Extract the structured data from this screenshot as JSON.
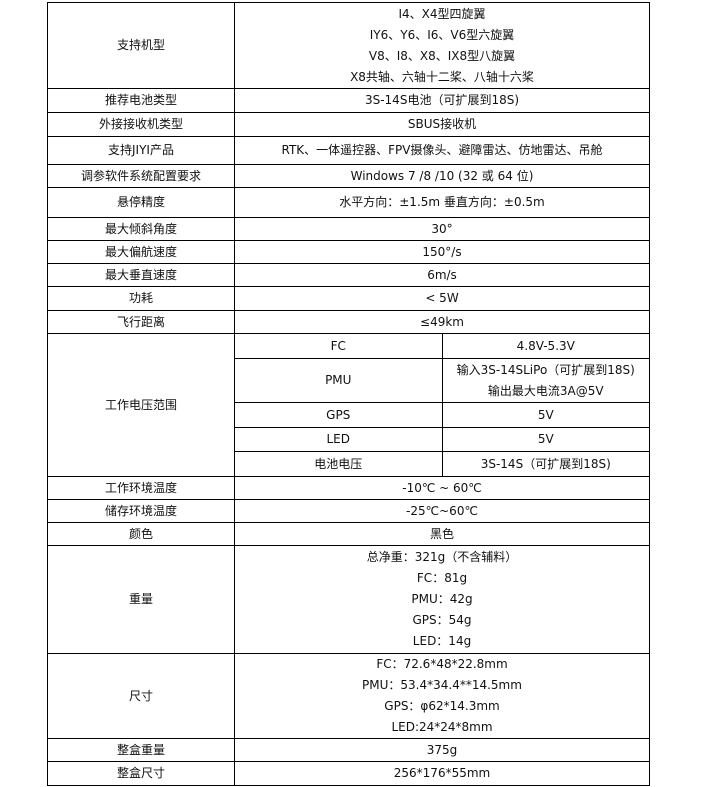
{
  "rows": [
    {
      "label": "支持机型",
      "lines": [
        "I4、X4型四旋翼",
        "IY6、Y6、I6、V6型六旋翼",
        "V8、I8、X8、IX8型八旋翼",
        "X8共轴、六轴十二桨、八轴十六桨"
      ]
    },
    {
      "label": "推荐电池类型",
      "lines": [
        "3S-14S电池（可扩展到18S)"
      ]
    },
    {
      "label": "外接接收机类型",
      "lines": [
        "SBUS接收机"
      ]
    },
    {
      "label": "支持JIYI产品",
      "lines": [
        "RTK、一体遥控器、FPV摄像头、避障雷达、仿地雷达、吊舱"
      ]
    },
    {
      "label": "调参软件系统配置要求",
      "lines": [
        "Windows 7 /8 /10 (32  或  64  位)"
      ]
    },
    {
      "label": "悬停精度",
      "lines": [
        "水平方向：±1.5m      垂直方向：±0.5m"
      ]
    },
    {
      "label": "最大倾斜角度",
      "lines": [
        "30°"
      ]
    },
    {
      "label": "最大偏航速度",
      "lines": [
        "150°/s"
      ]
    },
    {
      "label": "最大垂直速度",
      "lines": [
        "6m/s"
      ]
    },
    {
      "label": "功耗",
      "lines": [
        "< 5W"
      ]
    },
    {
      "label": "飞行距离",
      "lines": [
        "≤49km"
      ]
    },
    {
      "label": "工作电压范围",
      "sub": [
        {
          "label": "FC",
          "lines": [
            "4.8V-5.3V"
          ]
        },
        {
          "label": "PMU",
          "lines": [
            "输入3S-14SLiPo（可扩展到18S)",
            "输出最大电流3A@5V"
          ]
        },
        {
          "label": "GPS",
          "lines": [
            "5V"
          ]
        },
        {
          "label": "LED",
          "lines": [
            "5V"
          ]
        },
        {
          "label": "电池电压",
          "lines": [
            "3S-14S（可扩展到18S)"
          ]
        }
      ]
    },
    {
      "label": "工作环境温度",
      "lines": [
        "-10℃ ~ 60℃"
      ]
    },
    {
      "label": "储存环境温度",
      "lines": [
        "-25℃~60℃"
      ]
    },
    {
      "label": "颜色",
      "lines": [
        "黑色"
      ]
    },
    {
      "label": "重量",
      "lines": [
        "总净重：321g（不含辅料）",
        "FC：81g",
        "PMU：42g",
        "GPS：54g",
        "LED：14g"
      ]
    },
    {
      "label": "尺寸",
      "lines": [
        "FC：72.6*48*22.8mm",
        "PMU：53.4*34.4**14.5mm",
        "GPS：φ62*14.3mm",
        "LED:24*24*8mm"
      ]
    },
    {
      "label": "整盒重量",
      "lines": [
        "375g"
      ]
    },
    {
      "label": "整盒尺寸",
      "lines": [
        "256*176*55mm"
      ]
    }
  ]
}
